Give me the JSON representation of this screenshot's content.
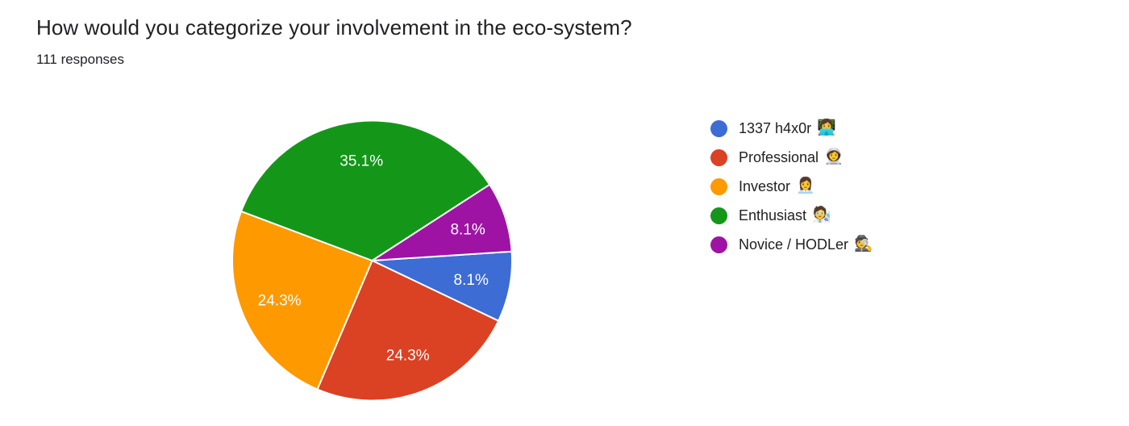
{
  "header": {
    "title": "How would you categorize your involvement in the eco-system?",
    "responses": "111 responses"
  },
  "chart_data": {
    "type": "pie",
    "title": "How would you categorize your involvement in the eco-system?",
    "subtitle": "111 responses",
    "total_responses_text": "111 responses",
    "categories": [
      "1337 h4x0r",
      "Professional",
      "Investor",
      "Enthusiast",
      "Novice / HODLer"
    ],
    "values_percent": [
      8.1,
      24.3,
      24.3,
      35.1,
      8.1
    ],
    "percent_labels": [
      "8.1%",
      "24.3%",
      "24.3%",
      "35.1%",
      "8.1%"
    ],
    "slice_colors": [
      "#3C6CD4",
      "#DB4123",
      "#FF9900",
      "#149718",
      "#9E13A4"
    ],
    "legend": [
      {
        "label": "1337 h4x0r",
        "emoji": "👩‍💻",
        "color": "#3C6CD4"
      },
      {
        "label": "Professional",
        "emoji": "👩‍🚀",
        "color": "#DB4123"
      },
      {
        "label": "Investor",
        "emoji": "👩‍💼",
        "color": "#FF9900"
      },
      {
        "label": "Enthusiast",
        "emoji": "🧑‍🔬",
        "color": "#149718"
      },
      {
        "label": "Novice / HODLer",
        "emoji": "🕵️",
        "color": "#9E13A4"
      }
    ],
    "layout": {
      "start_angle_deg": 86.3,
      "clockwise": true,
      "legend_position": "right",
      "percent_label_color": "#ffffff",
      "slice_border_color": "#ffffff"
    }
  }
}
